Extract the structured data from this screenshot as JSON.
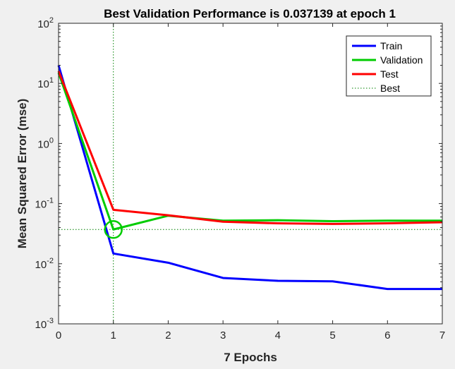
{
  "chart_data": {
    "type": "line",
    "title": "Best Validation Performance is 0.037139 at epoch 1",
    "xlabel": "7 Epochs",
    "ylabel": "Mean Squared Error  (mse)",
    "xlim": [
      0,
      7
    ],
    "ylim": [
      0.001,
      100
    ],
    "yscale": "log",
    "grid": false,
    "legend_position": "top-right",
    "x_ticks": [
      "0",
      "1",
      "2",
      "3",
      "4",
      "5",
      "6",
      "7"
    ],
    "y_ticks": [
      {
        "base": "10",
        "exp": "2",
        "value": 100
      },
      {
        "base": "10",
        "exp": "1",
        "value": 10
      },
      {
        "base": "10",
        "exp": "0",
        "value": 1
      },
      {
        "base": "10",
        "exp": "-1",
        "value": 0.1
      },
      {
        "base": "10",
        "exp": "-2",
        "value": 0.01
      },
      {
        "base": "10",
        "exp": "-3",
        "value": 0.001
      }
    ],
    "x": [
      0,
      1,
      2,
      3,
      4,
      5,
      6,
      7
    ],
    "series": [
      {
        "name": "Train",
        "color": "#0000ff",
        "values": [
          20,
          0.0148,
          0.0104,
          0.0058,
          0.0052,
          0.0051,
          0.0038,
          0.0038
        ]
      },
      {
        "name": "Validation",
        "color": "#00cc00",
        "values": [
          15,
          0.037139,
          0.063,
          0.052,
          0.053,
          0.051,
          0.052,
          0.052
        ]
      },
      {
        "name": "Test",
        "color": "#ff0000",
        "values": [
          16,
          0.079,
          0.064,
          0.05,
          0.047,
          0.046,
          0.047,
          0.049
        ]
      }
    ],
    "best": {
      "name": "Best",
      "color": "#008000",
      "epoch": 1,
      "value": 0.037139
    }
  }
}
